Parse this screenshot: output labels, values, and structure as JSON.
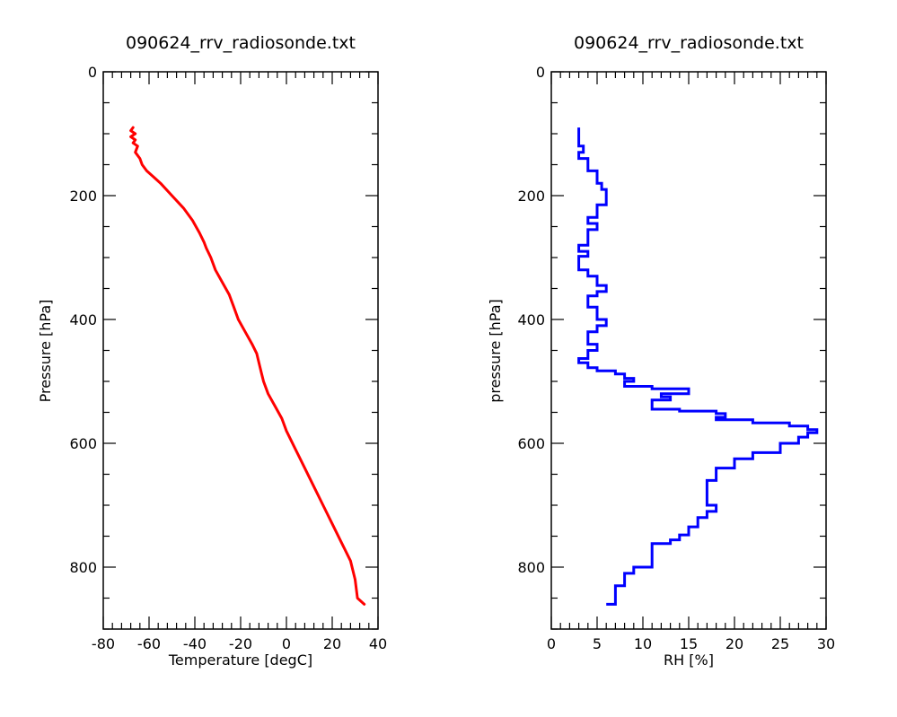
{
  "chart_data": [
    {
      "type": "line",
      "title": "090624_rrv_radiosonde.txt",
      "xlabel": "Temperature [degC]",
      "ylabel": "Pressure [hPa]",
      "xlim": [
        -80,
        40
      ],
      "ylim": [
        900,
        0
      ],
      "y_inverted": true,
      "xticks": [
        -80,
        -60,
        -40,
        -20,
        0,
        20,
        40
      ],
      "yticks": [
        0,
        200,
        400,
        600,
        800
      ],
      "grid": false,
      "color": "#ff0000",
      "series": [
        {
          "x": [
            -67,
            -68,
            -66,
            -68,
            -66,
            -67,
            -65,
            -66,
            -64,
            -63,
            -61,
            -58,
            -55,
            -50,
            -45,
            -41,
            -38,
            -36,
            -35,
            -33,
            -31,
            -28,
            -25,
            -23,
            -21,
            -18,
            -15,
            -13,
            -12,
            -11,
            -10,
            -8,
            -5,
            -2,
            0,
            4,
            8,
            12,
            16,
            20,
            24,
            28,
            30,
            31,
            34
          ],
          "y": [
            90,
            95,
            100,
            105,
            110,
            115,
            120,
            130,
            140,
            150,
            160,
            170,
            180,
            200,
            220,
            240,
            260,
            275,
            285,
            300,
            320,
            340,
            360,
            380,
            400,
            420,
            440,
            455,
            470,
            485,
            500,
            520,
            540,
            560,
            580,
            610,
            640,
            670,
            700,
            730,
            760,
            790,
            820,
            850,
            860
          ]
        }
      ]
    },
    {
      "type": "line",
      "title": "090624_rrv_radiosonde.txt",
      "xlabel": "RH [%]",
      "ylabel": "pressure [hPa]",
      "xlim": [
        0,
        30
      ],
      "ylim": [
        900,
        0
      ],
      "y_inverted": true,
      "xticks": [
        0,
        5,
        10,
        15,
        20,
        25,
        30
      ],
      "yticks": [
        0,
        200,
        400,
        600,
        800
      ],
      "grid": false,
      "color": "#0000ff",
      "series": [
        {
          "x": [
            3,
            3,
            3.5,
            3,
            4,
            4,
            5,
            5,
            5.5,
            6,
            6,
            5,
            5,
            4,
            5,
            4,
            4,
            3,
            4,
            3,
            3,
            4,
            5,
            6,
            5,
            4,
            4,
            5,
            5,
            6,
            5,
            4,
            4,
            5,
            5,
            4,
            4,
            3,
            3,
            4,
            5,
            7,
            8,
            8,
            9,
            8,
            8,
            11,
            15,
            12,
            13,
            11,
            11,
            14,
            18,
            19,
            18,
            22,
            26,
            28,
            29,
            28,
            27,
            25,
            22,
            20,
            18,
            17,
            17,
            18,
            17,
            16,
            15,
            14,
            13,
            11,
            11,
            9,
            8,
            7,
            7,
            6
          ],
          "y": [
            90,
            105,
            120,
            130,
            140,
            150,
            160,
            170,
            180,
            190,
            200,
            215,
            225,
            235,
            245,
            255,
            265,
            280,
            290,
            298,
            310,
            320,
            330,
            345,
            355,
            362,
            370,
            380,
            390,
            400,
            410,
            420,
            435,
            440,
            445,
            450,
            458,
            463,
            468,
            470,
            478,
            483,
            488,
            492,
            495,
            500,
            505,
            508,
            512,
            520,
            525,
            530,
            535,
            545,
            548,
            552,
            558,
            562,
            567,
            572,
            578,
            583,
            590,
            600,
            615,
            625,
            640,
            660,
            680,
            700,
            710,
            720,
            735,
            748,
            756,
            762,
            790,
            800,
            810,
            830,
            850,
            860
          ]
        }
      ]
    }
  ]
}
